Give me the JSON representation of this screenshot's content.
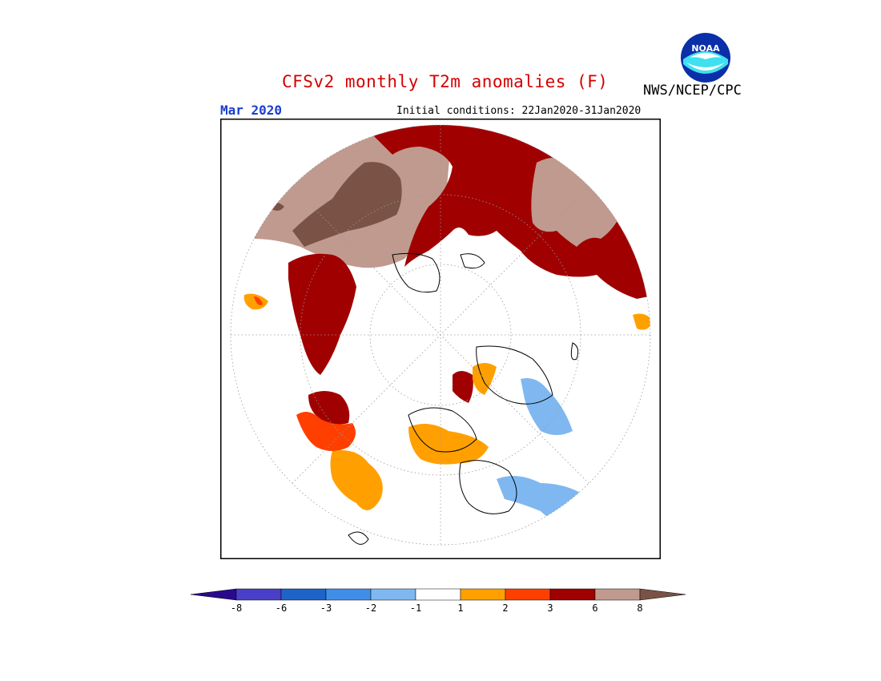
{
  "header": {
    "title": "CFSv2 monthly T2m anomalies (F)",
    "month": "Mar 2020",
    "initial_conditions": "Initial conditions: 22Jan2020-31Jan2020",
    "agency": "NWS/NCEP/CPC",
    "logo_text": "NOAA"
  },
  "colorbar": {
    "tick_labels": [
      "-8",
      "-6",
      "-3",
      "-2",
      "-1",
      "1",
      "2",
      "3",
      "6",
      "8"
    ],
    "colors": [
      "#2a0a8c",
      "#4a3fc8",
      "#1e63c8",
      "#3f8fe8",
      "#7fb8f0",
      "#ffffff",
      "#ffa000",
      "#ff3f00",
      "#a00000",
      "#c09a8e",
      "#7a5346"
    ]
  },
  "map": {
    "projection": "north-polar-stereographic",
    "colors": {
      "dark_red": "#a00000",
      "tan": "#c09a8e",
      "brown": "#7a5346",
      "orange": "#ffa000",
      "red_orange": "#ff3f00",
      "light_blue": "#7fb8f0",
      "blue": "#3f8fe8"
    }
  }
}
